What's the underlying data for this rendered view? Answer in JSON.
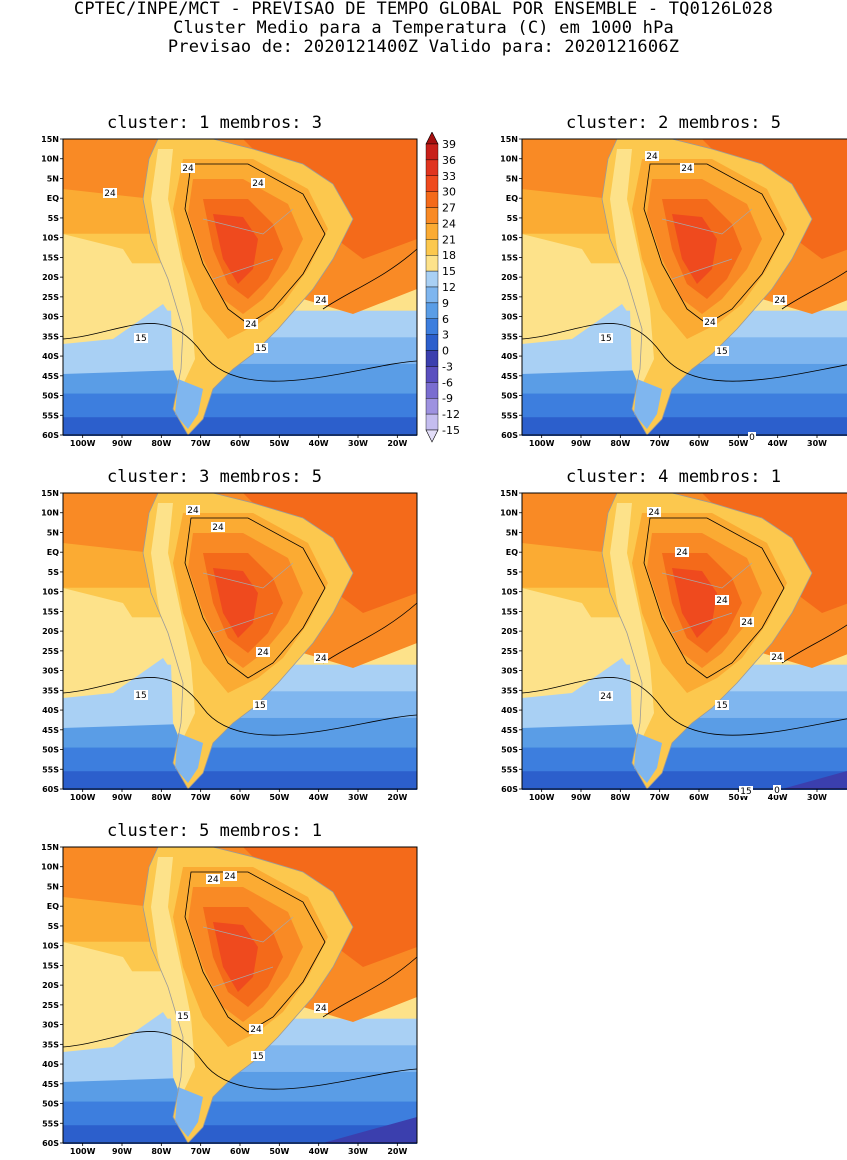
{
  "header": {
    "line1": "CPTEC/INPE/MCT - PREVISAO DE TEMPO GLOBAL POR ENSEMBLE - TQ0126L028",
    "line2": "Cluster Medio para a Temperatura (C) em 1000 hPa",
    "line3": "Previsao de: 2020121400Z   Valido para: 2020121606Z"
  },
  "lat_ticks": [
    "15N",
    "10N",
    "5N",
    "EQ",
    "5S",
    "10S",
    "15S",
    "20S",
    "25S",
    "30S",
    "35S",
    "40S",
    "45S",
    "50S",
    "55S",
    "60S"
  ],
  "lon_ticks": [
    "100W",
    "90W",
    "80W",
    "70W",
    "60W",
    "50W",
    "40W",
    "30W",
    "20W"
  ],
  "legend": {
    "levels": [
      "39",
      "36",
      "33",
      "30",
      "27",
      "24",
      "21",
      "18",
      "15",
      "12",
      "9",
      "6",
      "3",
      "0",
      "-3",
      "-6",
      "-9",
      "-12",
      "-15"
    ],
    "colors": [
      "#a50f0f",
      "#c8201a",
      "#e0341f",
      "#ef4a1e",
      "#f46a1a",
      "#f98a25",
      "#fbab33",
      "#fcc84e",
      "#fde28a",
      "#a9d0f4",
      "#7fb6ef",
      "#5a9de6",
      "#3d7ede",
      "#2c5fcc",
      "#3b3fae",
      "#5a4fbf",
      "#7a6dd0",
      "#9e92e0",
      "#c4bdef",
      "#e2ddf8"
    ]
  },
  "clusters": [
    {
      "title": "cluster: 1   membros: 3",
      "labels": [
        "24",
        "24",
        "24",
        "24",
        "24",
        "15",
        "15"
      ]
    },
    {
      "title": "cluster: 2   membros: 5",
      "labels": [
        "24",
        "24",
        "24",
        "24",
        "15",
        "15",
        "0"
      ]
    },
    {
      "title": "cluster: 3   membros: 5",
      "labels": [
        "24",
        "24",
        "24",
        "24",
        "15",
        "15"
      ]
    },
    {
      "title": "cluster: 4   membros: 1",
      "labels": [
        "24",
        "24",
        "24",
        "24",
        "24",
        "24",
        "15",
        "15",
        "0"
      ]
    },
    {
      "title": "cluster: 5   membros: 1",
      "labels": [
        "24",
        "24",
        "24",
        "24",
        "15",
        "15"
      ]
    }
  ]
}
